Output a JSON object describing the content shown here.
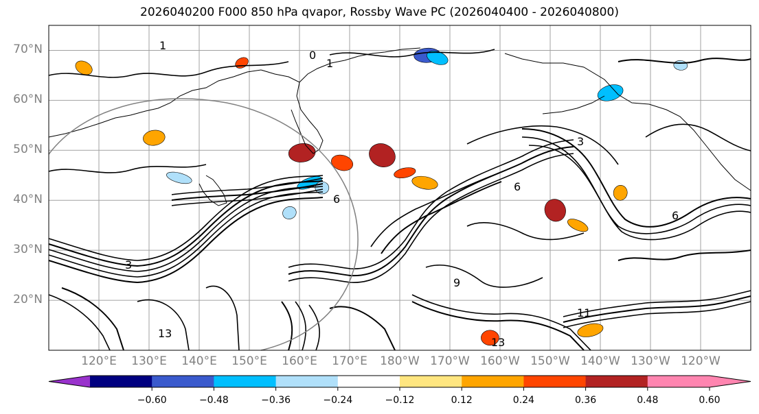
{
  "title": "2026040200 F000 850 hPa qvapor, Rossby Wave PC (2026040400 - 2026040800)",
  "map": {
    "projection": "cylindrical",
    "lat_range": [
      10,
      75
    ],
    "lon_range": [
      110,
      250
    ],
    "lat_ticks": [
      {
        "value": 70,
        "label": "70°N"
      },
      {
        "value": 60,
        "label": "60°N"
      },
      {
        "value": 50,
        "label": "50°N"
      },
      {
        "value": 40,
        "label": "40°N"
      },
      {
        "value": 30,
        "label": "30°N"
      },
      {
        "value": 20,
        "label": "20°N"
      }
    ],
    "lon_ticks": [
      {
        "value": 120,
        "label": "120°E"
      },
      {
        "value": 130,
        "label": "130°E"
      },
      {
        "value": 140,
        "label": "140°E"
      },
      {
        "value": 150,
        "label": "150°E"
      },
      {
        "value": 160,
        "label": "160°E"
      },
      {
        "value": 170,
        "label": "170°E"
      },
      {
        "value": 180,
        "label": "180°W"
      },
      {
        "value": 190,
        "label": "170°W"
      },
      {
        "value": 200,
        "label": "160°W"
      },
      {
        "value": 210,
        "label": "150°W"
      },
      {
        "value": 220,
        "label": "140°W"
      },
      {
        "value": 230,
        "label": "130°W"
      },
      {
        "value": 240,
        "label": "120°W"
      }
    ],
    "contour_labels": [
      "0",
      "1",
      "3",
      "6",
      "9",
      "11",
      "13"
    ],
    "colors": {
      "tick_label": "#808080",
      "grid": "#a0a0a0",
      "contour": "#000000"
    }
  },
  "colorbar": {
    "extend": "both",
    "colors": [
      "#9932cc",
      "#000080",
      "#3a5acd",
      "#00bfff",
      "#b0e0fa",
      "#ffffff",
      "#ffe680",
      "#ffa500",
      "#ff4500",
      "#b22222",
      "#ff85b0",
      "#ff85b0"
    ],
    "tick_values": [
      -0.6,
      -0.48,
      -0.36,
      -0.24,
      -0.12,
      0.12,
      0.24,
      0.36,
      0.48,
      0.6
    ],
    "tick_labels": [
      "−0.60",
      "−0.48",
      "−0.36",
      "−0.24",
      "−0.12",
      "0.12",
      "0.24",
      "0.36",
      "0.48",
      "0.60"
    ]
  },
  "anomaly_blobs": [
    {
      "lon": 148.5,
      "lat": 67.5,
      "value": 0.36
    },
    {
      "lon": 160.5,
      "lat": 49.5,
      "value": 0.48
    },
    {
      "lon": 168.5,
      "lat": 47.5,
      "value": 0.36
    },
    {
      "lon": 162.0,
      "lat": 43.5,
      "value": -0.36
    },
    {
      "lon": 164.5,
      "lat": 42.5,
      "value": -0.24
    },
    {
      "lon": 176.5,
      "lat": 49.0,
      "value": 0.48
    },
    {
      "lon": 181.0,
      "lat": 45.5,
      "value": 0.36
    },
    {
      "lon": 185.0,
      "lat": 43.5,
      "value": 0.24
    },
    {
      "lon": 211.0,
      "lat": 38.0,
      "value": 0.48
    },
    {
      "lon": 185.5,
      "lat": 69.0,
      "value": -0.48
    },
    {
      "lon": 187.5,
      "lat": 68.5,
      "value": -0.36
    },
    {
      "lon": 222.0,
      "lat": 61.5,
      "value": -0.36
    },
    {
      "lon": 236.0,
      "lat": 67.0,
      "value": -0.24
    },
    {
      "lon": 117.0,
      "lat": 66.5,
      "value": 0.24
    },
    {
      "lon": 131.0,
      "lat": 52.5,
      "value": 0.24
    },
    {
      "lon": 136.0,
      "lat": 44.5,
      "value": -0.24
    },
    {
      "lon": 158.0,
      "lat": 37.5,
      "value": -0.24
    },
    {
      "lon": 198.0,
      "lat": 12.5,
      "value": 0.36
    },
    {
      "lon": 215.5,
      "lat": 35.0,
      "value": 0.24
    },
    {
      "lon": 218.0,
      "lat": 14.0,
      "value": 0.24
    },
    {
      "lon": 224.0,
      "lat": 41.5,
      "value": 0.24
    }
  ]
}
